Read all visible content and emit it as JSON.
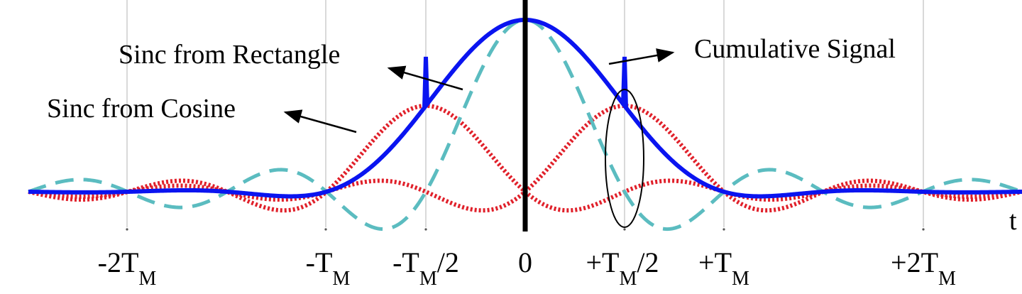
{
  "labels": {
    "rect": "Sinc from Rectangle",
    "cos": "Sinc from Cosine",
    "cumulative": "Cumulative Signal"
  },
  "axis": {
    "t_label": "t",
    "ticks": [
      {
        "main": "-2T",
        "sub": "M",
        "tail": ""
      },
      {
        "main": "-T",
        "sub": "M",
        "tail": ""
      },
      {
        "main": "-T",
        "sub": "M",
        "tail": "/2"
      },
      {
        "main": "0",
        "sub": "",
        "tail": ""
      },
      {
        "main": "+T",
        "sub": "M",
        "tail": "/2"
      },
      {
        "main": "+T",
        "sub": "M",
        "tail": ""
      },
      {
        "main": "+2T",
        "sub": "M",
        "tail": ""
      }
    ]
  },
  "colors": {
    "cumulative": "#0a14f0",
    "rect_sinc": "#5bbcc0",
    "cos_sinc": "#e0202a",
    "axis": "#000000",
    "grid": "#d9d9d9"
  }
}
